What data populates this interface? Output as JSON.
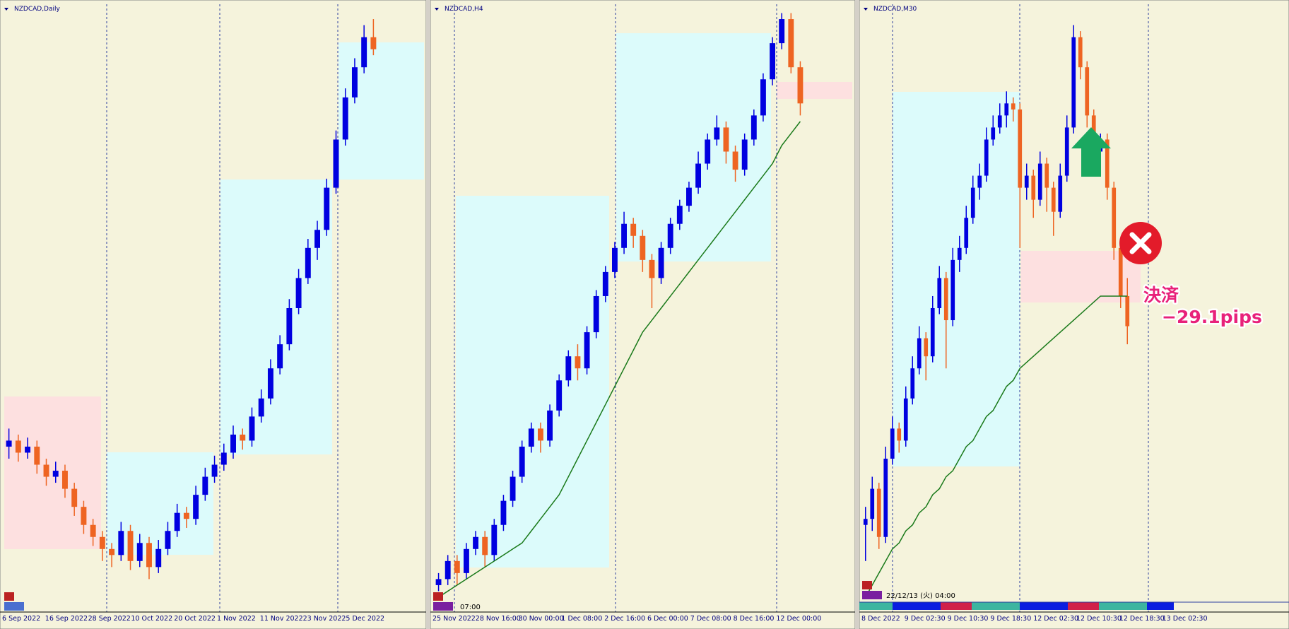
{
  "panels": [
    {
      "title": "NZDCAD,Daily",
      "ylim": [
        0,
        100
      ],
      "up_color": "#0000e0",
      "down_color": "#ee6422",
      "x_labels": [
        "6 Sep 2022",
        "16 Sep 2022",
        "28 Sep 2022",
        "10 Oct 2022",
        "20 Oct 2022",
        "1 Nov 2022",
        "11 Nov 2022",
        "23 Nov 2022",
        "5 Dec 2022"
      ],
      "ohlc": [
        [
          27,
          30,
          25,
          28
        ],
        [
          28,
          29,
          24.5,
          26
        ],
        [
          26,
          28.5,
          25,
          27
        ],
        [
          27,
          28,
          22.5,
          24
        ],
        [
          24,
          25,
          20.5,
          22
        ],
        [
          22,
          24.5,
          21,
          23
        ],
        [
          23,
          24,
          18.5,
          20
        ],
        [
          20,
          21,
          15.5,
          17
        ],
        [
          17,
          18,
          12.5,
          14
        ],
        [
          14,
          15,
          10.5,
          12
        ],
        [
          12,
          13,
          8,
          10
        ],
        [
          10,
          11,
          7,
          9
        ],
        [
          9,
          14.5,
          8,
          13
        ],
        [
          13,
          14,
          6.5,
          8
        ],
        [
          8,
          12.5,
          7,
          11
        ],
        [
          11,
          12,
          5,
          7
        ],
        [
          7,
          11.5,
          6,
          10
        ],
        [
          10,
          14.5,
          9,
          13
        ],
        [
          13,
          17.5,
          12,
          16
        ],
        [
          16,
          17,
          13.5,
          15
        ],
        [
          15,
          20.5,
          14,
          19
        ],
        [
          19,
          23.5,
          18,
          22
        ],
        [
          22,
          25.5,
          21,
          24
        ],
        [
          24,
          27.5,
          23,
          26
        ],
        [
          26,
          30.5,
          25,
          29
        ],
        [
          29,
          30,
          26.5,
          28
        ],
        [
          28,
          33.5,
          27,
          32
        ],
        [
          32,
          36.5,
          31,
          35
        ],
        [
          35,
          41.5,
          34,
          40
        ],
        [
          40,
          45.5,
          39,
          44
        ],
        [
          44,
          51.5,
          43,
          50
        ],
        [
          50,
          56.5,
          49,
          55
        ],
        [
          55,
          61.5,
          54,
          60
        ],
        [
          60,
          64.5,
          58,
          63
        ],
        [
          63,
          71.5,
          62,
          70
        ],
        [
          70,
          79.5,
          69,
          78
        ],
        [
          78,
          86.5,
          77,
          85
        ],
        [
          85,
          91.5,
          84,
          90
        ],
        [
          90,
          97,
          89,
          95
        ],
        [
          95,
          98,
          92,
          93
        ]
      ]
    },
    {
      "title": "NZDCAD,H4",
      "ylim": [
        0,
        100
      ],
      "up_color": "#0000e0",
      "down_color": "#ee6422",
      "ma_color": "#1a7a1a",
      "time_label": "07:00",
      "x_labels": [
        "25 Nov 2022",
        "28 Nov 16:00",
        "30 Nov 00:00",
        "1 Dec 08:00",
        "2 Dec 16:00",
        "6 Dec 00:00",
        "7 Dec 08:00",
        "8 Dec 16:00",
        "12 Dec 00:00"
      ],
      "ohlc": [
        [
          4,
          6,
          3,
          5
        ],
        [
          5,
          9,
          4,
          8
        ],
        [
          8,
          9,
          4,
          6
        ],
        [
          6,
          11,
          5,
          10
        ],
        [
          10,
          13,
          9,
          12
        ],
        [
          12,
          13,
          7,
          9
        ],
        [
          9,
          15,
          8,
          14
        ],
        [
          14,
          19,
          13,
          18
        ],
        [
          18,
          23,
          17,
          22
        ],
        [
          22,
          28,
          21,
          27
        ],
        [
          27,
          31,
          26,
          30
        ],
        [
          30,
          31,
          26,
          28
        ],
        [
          28,
          34,
          27,
          33
        ],
        [
          33,
          39,
          32,
          38
        ],
        [
          38,
          43,
          37,
          42
        ],
        [
          42,
          44,
          38,
          40
        ],
        [
          40,
          47,
          39,
          46
        ],
        [
          46,
          53,
          45,
          52
        ],
        [
          52,
          57,
          51,
          56
        ],
        [
          56,
          61,
          55,
          60
        ],
        [
          60,
          66,
          59,
          64
        ],
        [
          64,
          65,
          60,
          62
        ],
        [
          62,
          63,
          56,
          58
        ],
        [
          58,
          59,
          50,
          55
        ],
        [
          55,
          61,
          54,
          60
        ],
        [
          60,
          65,
          59,
          64
        ],
        [
          64,
          68,
          63,
          67
        ],
        [
          67,
          71,
          66,
          70
        ],
        [
          70,
          76,
          69,
          74
        ],
        [
          74,
          79,
          73,
          78
        ],
        [
          78,
          82,
          77,
          80
        ],
        [
          80,
          81,
          74,
          76
        ],
        [
          76,
          77,
          71,
          73
        ],
        [
          73,
          79,
          72,
          78
        ],
        [
          78,
          83,
          77,
          82
        ],
        [
          82,
          89,
          81,
          88
        ],
        [
          88,
          95,
          87,
          94
        ],
        [
          94,
          99,
          93,
          98
        ],
        [
          98,
          99,
          89,
          90
        ],
        [
          90,
          91,
          82,
          84
        ]
      ],
      "ma": [
        2,
        3,
        4,
        5,
        6,
        7,
        8,
        9,
        10,
        11,
        13,
        15,
        17,
        19,
        22,
        25,
        28,
        31,
        34,
        37,
        40,
        43,
        46,
        48,
        50,
        52,
        54,
        56,
        58,
        60,
        62,
        64,
        66,
        68,
        70,
        72,
        74,
        77,
        79,
        81
      ]
    },
    {
      "title": "NZDCAD,M30",
      "ylim": [
        0,
        100
      ],
      "up_color": "#0000e0",
      "down_color": "#ee6422",
      "ma_color": "#1a7a1a",
      "time_label": "22/12/13 (火) 04:00",
      "exit_label": "決済",
      "pips_label": "−29.1pips",
      "x_labels": [
        "8 Dec 2022",
        "9 Dec 02:30",
        "9 Dec 10:30",
        "9 Dec 18:30",
        "12 Dec 02:30",
        "12 Dec 10:30",
        "12 Dec 18:30",
        "13 Dec 02:30"
      ],
      "ohlc": [
        [
          14,
          17,
          8,
          15
        ],
        [
          15,
          22,
          13,
          20
        ],
        [
          20,
          21,
          10,
          12
        ],
        [
          12,
          27,
          11,
          25
        ],
        [
          25,
          32,
          24,
          30
        ],
        [
          30,
          31,
          26,
          28
        ],
        [
          28,
          37,
          27,
          35
        ],
        [
          35,
          42,
          34,
          40
        ],
        [
          40,
          47,
          39,
          45
        ],
        [
          45,
          46,
          38,
          42
        ],
        [
          42,
          52,
          41,
          50
        ],
        [
          50,
          57,
          49,
          55
        ],
        [
          55,
          56,
          40,
          48
        ],
        [
          48,
          60,
          47,
          58
        ],
        [
          58,
          62,
          56,
          60
        ],
        [
          60,
          67,
          59,
          65
        ],
        [
          65,
          72,
          64,
          70
        ],
        [
          70,
          74,
          68,
          72
        ],
        [
          72,
          80,
          71,
          78
        ],
        [
          78,
          82,
          77,
          80
        ],
        [
          80,
          84,
          79,
          82
        ],
        [
          82,
          86,
          80,
          84
        ],
        [
          84,
          85,
          81,
          83
        ],
        [
          83,
          84,
          60,
          70
        ],
        [
          70,
          74,
          68,
          72
        ],
        [
          72,
          73,
          65,
          68
        ],
        [
          68,
          76,
          67,
          74
        ],
        [
          74,
          75,
          66,
          70
        ],
        [
          70,
          71,
          62,
          66
        ],
        [
          66,
          74,
          65,
          72
        ],
        [
          72,
          82,
          71,
          80
        ],
        [
          80,
          97,
          79,
          95
        ],
        [
          95,
          96,
          88,
          90
        ],
        [
          90,
          91,
          80,
          82
        ],
        [
          82,
          83,
          74,
          76
        ],
        [
          76,
          79,
          74,
          78
        ],
        [
          78,
          79,
          68,
          70
        ],
        [
          70,
          71,
          58,
          60
        ],
        [
          60,
          61,
          50,
          52
        ],
        [
          52,
          55,
          44,
          47
        ]
      ],
      "ma": [
        2,
        4,
        6,
        8,
        10,
        11,
        13,
        14,
        16,
        17,
        19,
        20,
        22,
        23,
        25,
        27,
        28,
        30,
        32,
        33,
        35,
        37,
        38,
        40,
        41,
        42,
        43,
        44,
        45,
        46,
        47,
        48,
        49,
        50,
        51,
        52,
        52,
        52,
        52,
        52
      ]
    }
  ]
}
